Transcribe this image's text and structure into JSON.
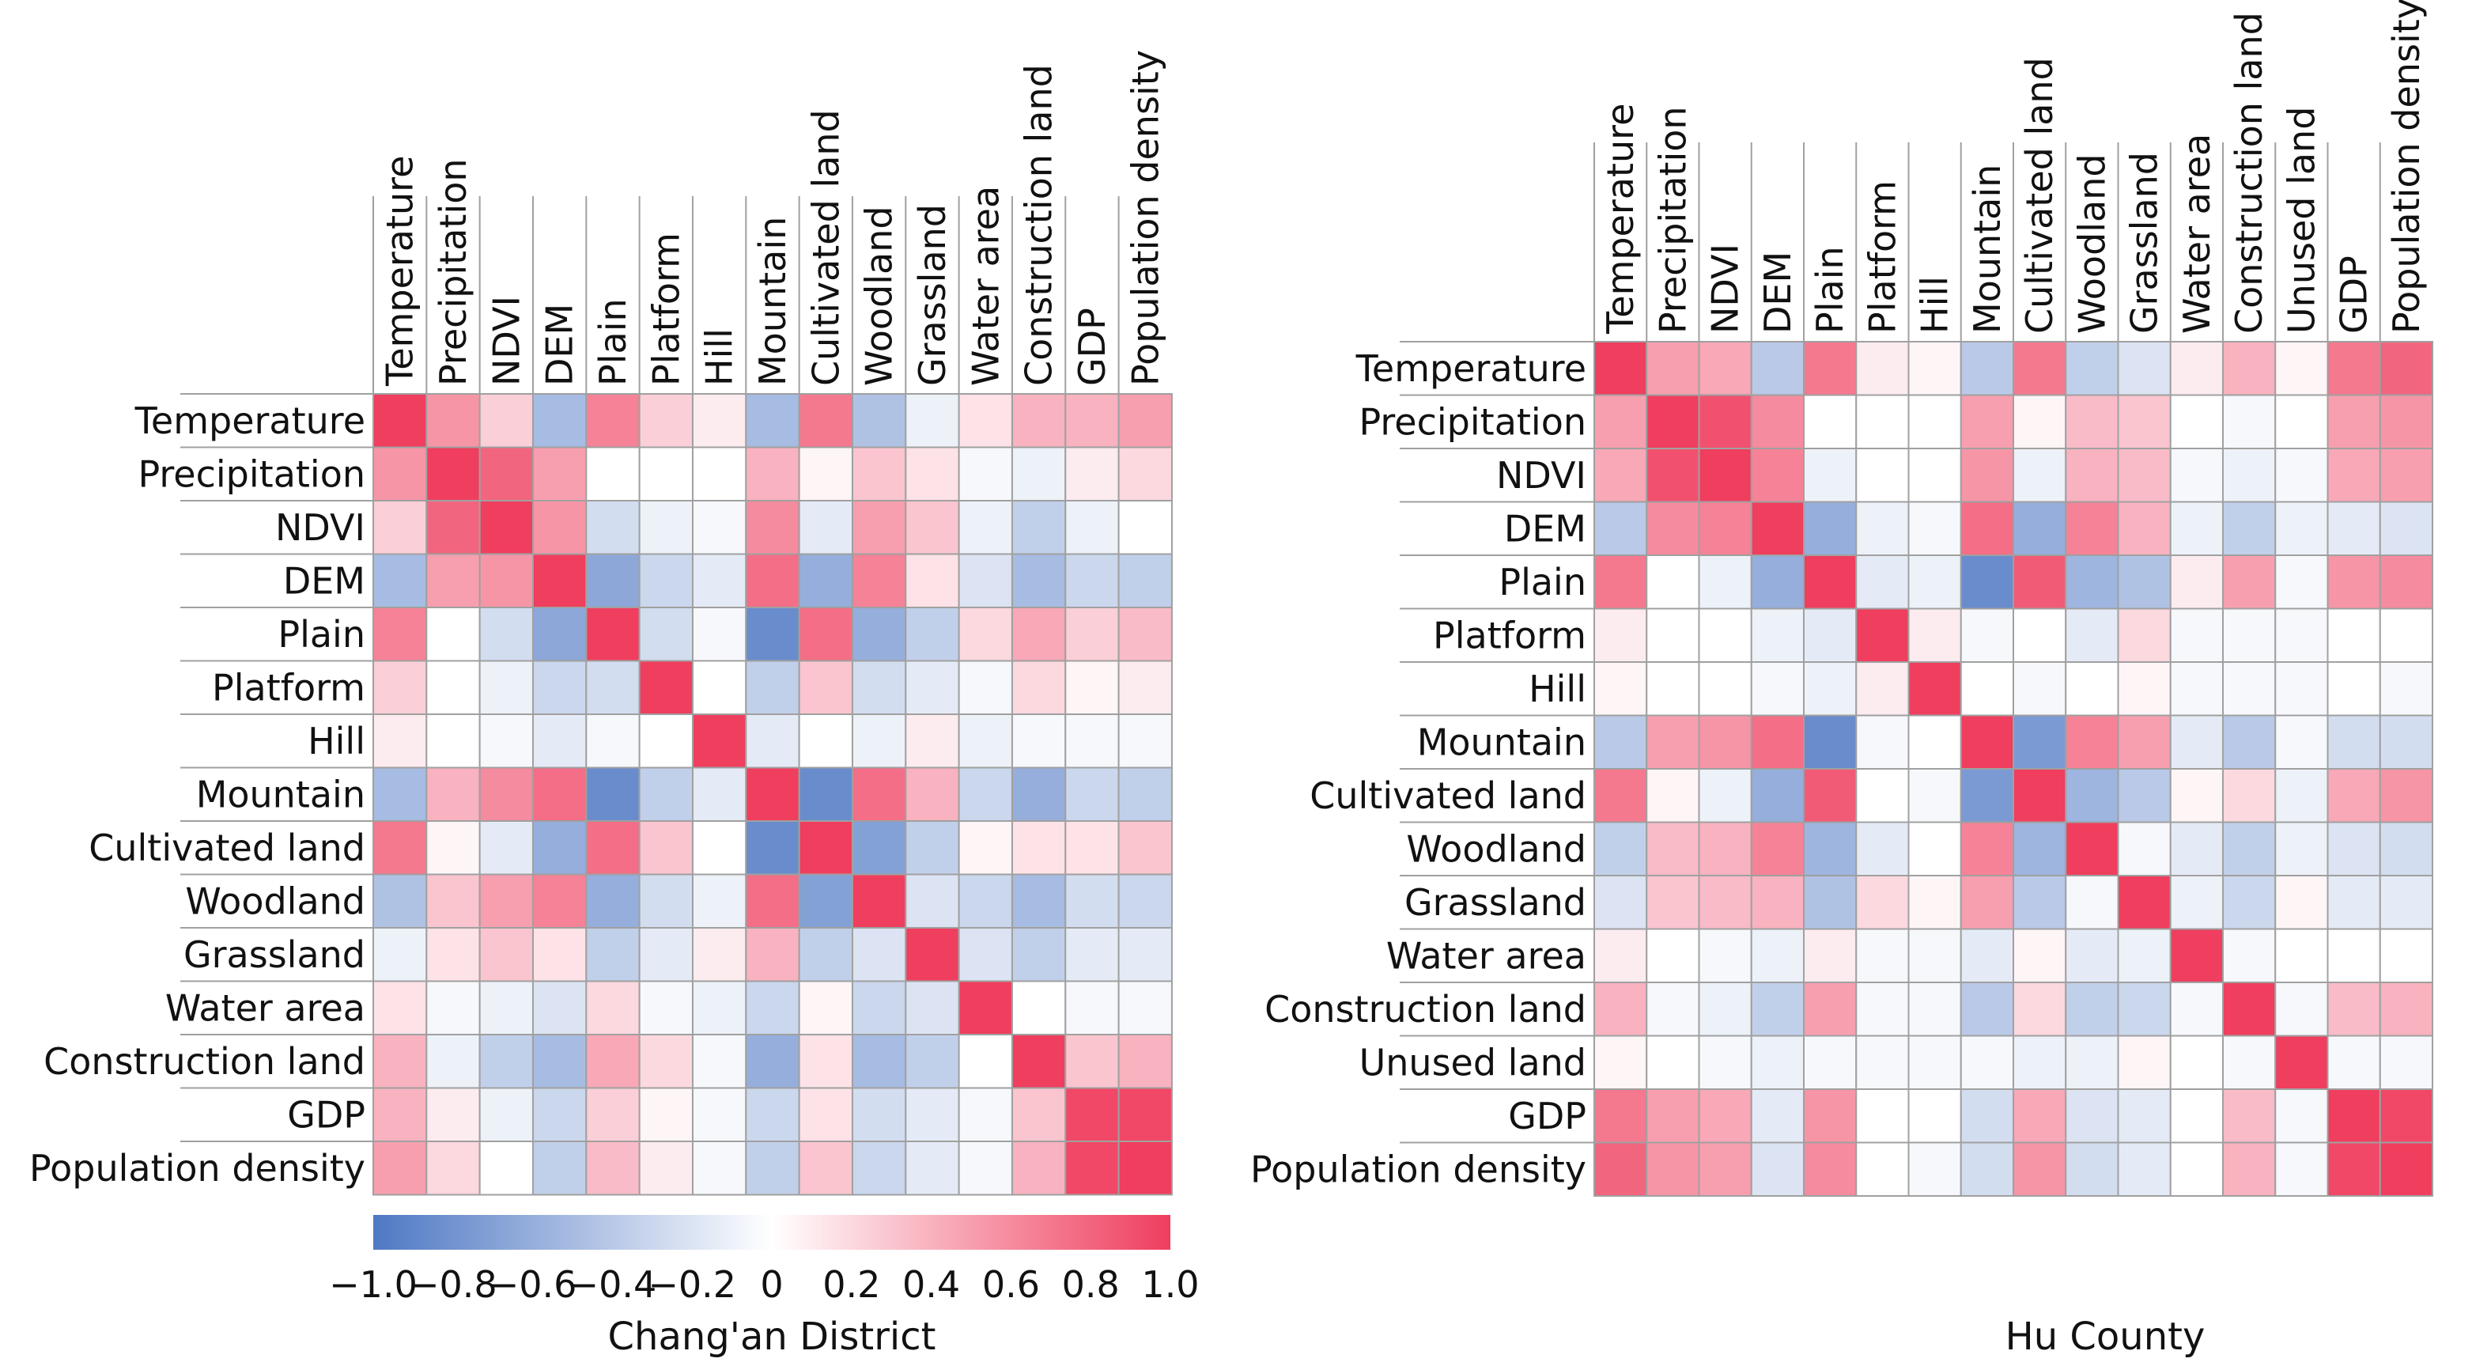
{
  "scale": {
    "colors": [
      "#4f78c4",
      "#ffffff",
      "#ef3e5e"
    ],
    "ticks": [
      "−1.0",
      "−0.8",
      "−0.6",
      "−0.4",
      "−0.2",
      "0",
      "0.2",
      "0.4",
      "0.6",
      "0.8",
      "1.0"
    ]
  },
  "chart_data": [
    {
      "type": "heatmap",
      "title": "Chang'an District",
      "variables": [
        "Temperature",
        "Precipitation",
        "NDVI",
        "DEM",
        "Plain",
        "Platform",
        "Hill",
        "Mountain",
        "Cultivated land",
        "Woodland",
        "Grassland",
        "Water area",
        "Construction land",
        "GDP",
        "Population density"
      ],
      "vmin": -1,
      "vmax": 1,
      "values": [
        [
          1.0,
          0.55,
          0.25,
          -0.5,
          0.65,
          0.25,
          0.1,
          -0.5,
          0.7,
          -0.45,
          -0.1,
          0.15,
          0.4,
          0.4,
          0.5
        ],
        [
          0.55,
          1.0,
          0.8,
          0.5,
          0.0,
          0.0,
          0.0,
          0.4,
          0.05,
          0.3,
          0.15,
          -0.05,
          -0.1,
          0.1,
          0.2
        ],
        [
          0.25,
          0.8,
          1.0,
          0.55,
          -0.25,
          -0.1,
          -0.05,
          0.6,
          -0.15,
          0.5,
          0.3,
          -0.1,
          -0.35,
          -0.1,
          0.0
        ],
        [
          -0.5,
          0.5,
          0.55,
          1.0,
          -0.65,
          -0.3,
          -0.15,
          0.75,
          -0.6,
          0.65,
          0.15,
          -0.2,
          -0.5,
          -0.3,
          -0.35
        ],
        [
          0.65,
          0.0,
          -0.25,
          -0.65,
          1.0,
          -0.25,
          -0.05,
          -0.85,
          0.75,
          -0.6,
          -0.35,
          0.2,
          0.45,
          0.25,
          0.35
        ],
        [
          0.25,
          0.0,
          -0.1,
          -0.3,
          -0.25,
          1.0,
          0.0,
          -0.35,
          0.3,
          -0.25,
          -0.15,
          -0.05,
          0.2,
          0.05,
          0.1
        ],
        [
          0.1,
          0.0,
          -0.05,
          -0.15,
          -0.05,
          0.0,
          1.0,
          -0.15,
          0.0,
          -0.1,
          0.1,
          -0.1,
          -0.05,
          -0.05,
          -0.05
        ],
        [
          -0.5,
          0.4,
          0.6,
          0.75,
          -0.85,
          -0.35,
          -0.15,
          1.0,
          -0.85,
          0.75,
          0.4,
          -0.3,
          -0.6,
          -0.3,
          -0.35
        ],
        [
          0.7,
          0.05,
          -0.15,
          -0.6,
          0.75,
          0.3,
          0.0,
          -0.85,
          1.0,
          -0.7,
          -0.35,
          0.05,
          0.15,
          0.15,
          0.3
        ],
        [
          -0.45,
          0.3,
          0.5,
          0.65,
          -0.6,
          -0.25,
          -0.1,
          0.75,
          -0.7,
          1.0,
          -0.2,
          -0.3,
          -0.5,
          -0.25,
          -0.3
        ],
        [
          -0.1,
          0.15,
          0.3,
          0.15,
          -0.35,
          -0.15,
          0.1,
          0.4,
          -0.35,
          -0.2,
          1.0,
          -0.2,
          -0.35,
          -0.15,
          -0.15
        ],
        [
          0.15,
          -0.05,
          -0.1,
          -0.2,
          0.2,
          -0.05,
          -0.1,
          -0.3,
          0.05,
          -0.3,
          -0.2,
          1.0,
          0.0,
          -0.05,
          -0.05
        ],
        [
          0.4,
          -0.1,
          -0.35,
          -0.5,
          0.45,
          0.2,
          -0.05,
          -0.6,
          0.15,
          -0.5,
          -0.35,
          0.0,
          1.0,
          0.3,
          0.4
        ],
        [
          0.4,
          0.1,
          -0.1,
          -0.3,
          0.25,
          0.05,
          -0.05,
          -0.3,
          0.15,
          -0.25,
          -0.15,
          -0.05,
          0.3,
          0.95,
          0.95
        ],
        [
          0.5,
          0.2,
          0.0,
          -0.35,
          0.35,
          0.1,
          -0.05,
          -0.35,
          0.3,
          -0.3,
          -0.15,
          -0.05,
          0.4,
          0.95,
          1.0
        ]
      ]
    },
    {
      "type": "heatmap",
      "title": "Hu County",
      "variables": [
        "Temperature",
        "Precipitation",
        "NDVI",
        "DEM",
        "Plain",
        "Platform",
        "Hill",
        "Mountain",
        "Cultivated land",
        "Woodland",
        "Grassland",
        "Water area",
        "Construction land",
        "Unused land",
        "GDP",
        "Population density"
      ],
      "vmin": -1,
      "vmax": 1,
      "values": [
        [
          1.0,
          0.5,
          0.45,
          -0.4,
          0.7,
          0.1,
          0.05,
          -0.4,
          0.7,
          -0.35,
          -0.2,
          0.1,
          0.4,
          0.05,
          0.7,
          0.8
        ],
        [
          0.5,
          1.0,
          0.9,
          0.6,
          0.0,
          0.0,
          0.0,
          0.5,
          0.05,
          0.35,
          0.3,
          0.0,
          -0.05,
          0.0,
          0.5,
          0.55
        ],
        [
          0.45,
          0.9,
          1.0,
          0.65,
          -0.1,
          0.0,
          0.0,
          0.55,
          -0.1,
          0.4,
          0.35,
          -0.05,
          -0.1,
          -0.05,
          0.45,
          0.5
        ],
        [
          -0.4,
          0.6,
          0.65,
          1.0,
          -0.6,
          -0.1,
          -0.05,
          0.75,
          -0.6,
          0.65,
          0.4,
          -0.1,
          -0.35,
          -0.1,
          -0.15,
          -0.2
        ],
        [
          0.7,
          0.0,
          -0.1,
          -0.6,
          1.0,
          -0.15,
          -0.1,
          -0.85,
          0.85,
          -0.55,
          -0.45,
          0.1,
          0.5,
          -0.05,
          0.55,
          0.6
        ],
        [
          0.1,
          0.0,
          0.0,
          -0.1,
          -0.15,
          1.0,
          0.1,
          -0.05,
          0.0,
          -0.15,
          0.2,
          -0.05,
          -0.05,
          -0.05,
          0.0,
          0.0
        ],
        [
          0.05,
          0.0,
          0.0,
          -0.05,
          -0.1,
          0.1,
          1.0,
          0.0,
          -0.05,
          0.0,
          0.05,
          -0.05,
          -0.05,
          -0.05,
          0.0,
          -0.05
        ],
        [
          -0.4,
          0.5,
          0.55,
          0.75,
          -0.85,
          -0.05,
          0.0,
          1.0,
          -0.75,
          0.65,
          0.5,
          -0.15,
          -0.4,
          -0.05,
          -0.25,
          -0.25
        ],
        [
          0.7,
          0.05,
          -0.1,
          -0.6,
          0.85,
          0.0,
          -0.05,
          -0.75,
          1.0,
          -0.55,
          -0.4,
          0.05,
          0.2,
          -0.1,
          0.45,
          0.55
        ],
        [
          -0.35,
          0.35,
          0.4,
          0.65,
          -0.55,
          -0.15,
          0.0,
          0.65,
          -0.55,
          1.0,
          -0.05,
          -0.15,
          -0.35,
          -0.1,
          -0.2,
          -0.25
        ],
        [
          -0.2,
          0.3,
          0.35,
          0.4,
          -0.45,
          0.2,
          0.05,
          0.5,
          -0.4,
          -0.05,
          1.0,
          -0.1,
          -0.3,
          0.05,
          -0.15,
          -0.15
        ],
        [
          0.1,
          0.0,
          -0.05,
          -0.1,
          0.1,
          -0.05,
          -0.05,
          -0.15,
          0.05,
          -0.15,
          -0.1,
          1.0,
          -0.05,
          0.0,
          0.0,
          0.0
        ],
        [
          0.4,
          -0.05,
          -0.1,
          -0.35,
          0.5,
          -0.05,
          -0.05,
          -0.4,
          0.2,
          -0.35,
          -0.3,
          -0.05,
          1.0,
          -0.05,
          0.35,
          0.4
        ],
        [
          0.05,
          0.0,
          -0.05,
          -0.1,
          -0.05,
          -0.05,
          -0.05,
          -0.05,
          -0.1,
          -0.1,
          0.05,
          0.0,
          -0.05,
          1.0,
          -0.05,
          -0.05
        ],
        [
          0.7,
          0.5,
          0.45,
          -0.15,
          0.55,
          0.0,
          0.0,
          -0.25,
          0.45,
          -0.2,
          -0.15,
          0.0,
          0.35,
          -0.05,
          1.0,
          0.95
        ],
        [
          0.8,
          0.55,
          0.5,
          -0.2,
          0.6,
          0.0,
          -0.05,
          -0.25,
          0.55,
          -0.25,
          -0.15,
          0.0,
          0.4,
          -0.05,
          0.95,
          1.0
        ]
      ]
    }
  ]
}
